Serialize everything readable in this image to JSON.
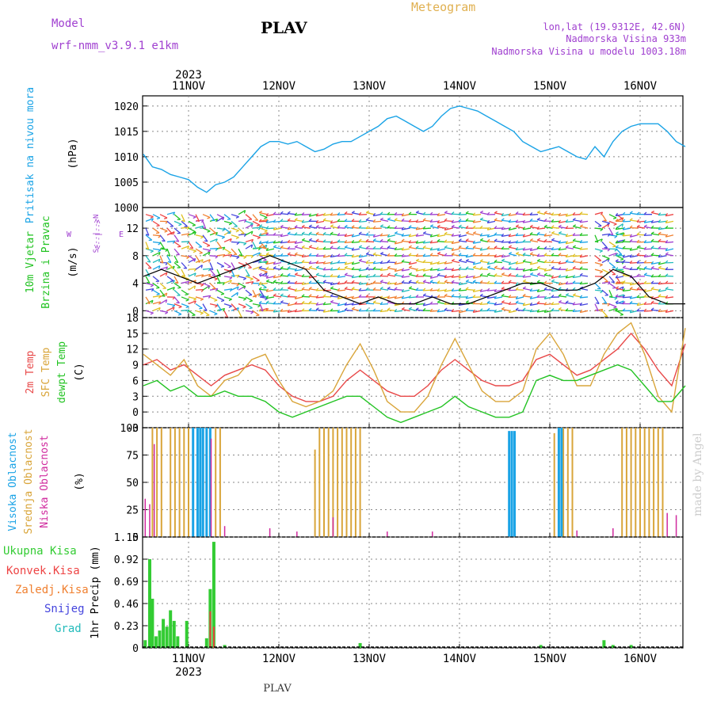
{
  "header": {
    "model_label": "Model",
    "model_name": "wrf-nmm_v3.9.1 e1km",
    "station": "PLAV",
    "title": "Meteogram",
    "lonlat": "lon,lat (19.9312E, 42.6N)",
    "altitude": "Nadmorska Visina 933m",
    "model_altitude": "Nadmorska Visina u modelu 1003.18m",
    "footer_station": "PLAV",
    "credit": "made by Angel"
  },
  "colors": {
    "pressure": "#1aa3e6",
    "wind_label": "#22c322",
    "temp2m": "#e84848",
    "sfc": "#d9a53a",
    "dewpt": "#22c322",
    "high_cloud": "#1aa3e6",
    "mid_cloud": "#d9a53a",
    "low_cloud": "#d02a9e",
    "total_precip": "#33cc33",
    "conv_precip": "#ee4444",
    "frz_precip": "#f08030",
    "snow": "#4444dd",
    "hail": "#22bbbb",
    "purple": "#a040d0",
    "title_gold": "#e0b050"
  },
  "chart_data": [
    {
      "type": "line",
      "name": "pressure",
      "ylabel": "Pritisak na nivou mora",
      "unit": "(hPa)",
      "ylim": [
        1000,
        1022
      ],
      "yticks": [
        1000,
        1005,
        1010,
        1015,
        1020
      ],
      "x_day_offset": [
        0.0,
        0.1,
        0.2,
        0.3,
        0.4,
        0.5,
        0.6,
        0.7,
        0.8,
        0.9,
        1.0,
        1.1,
        1.2,
        1.3,
        1.4,
        1.5,
        1.6,
        1.7,
        1.8,
        1.9,
        2.0,
        2.1,
        2.2,
        2.3,
        2.4,
        2.5,
        2.6,
        2.7,
        2.8,
        2.9,
        3.0,
        3.1,
        3.2,
        3.3,
        3.4,
        3.5,
        3.6,
        3.7,
        3.8,
        3.9,
        4.0,
        4.1,
        4.2,
        4.3,
        4.4,
        4.5,
        4.6,
        4.7,
        4.8,
        4.9,
        5.0,
        5.1,
        5.2,
        5.3,
        5.4,
        5.5,
        5.6,
        5.7,
        5.8,
        5.9,
        6.0
      ],
      "values": [
        1010.5,
        1008,
        1007.5,
        1006.5,
        1006,
        1005.5,
        1004,
        1003,
        1004.5,
        1005,
        1006,
        1008,
        1010,
        1012,
        1013,
        1013,
        1012.5,
        1013,
        1012,
        1011,
        1011.5,
        1012.5,
        1013,
        1013,
        1014,
        1015,
        1016,
        1017.5,
        1018,
        1017,
        1016,
        1015,
        1016,
        1018,
        1019.5,
        1020,
        1019.5,
        1019,
        1018,
        1017,
        1016,
        1015,
        1013,
        1012,
        1011,
        1011.5,
        1012,
        1011,
        1010,
        1009.5,
        1012,
        1010,
        1013,
        1015,
        1016,
        1016.5,
        1016.5,
        1016.5,
        1015,
        1013,
        1012
      ]
    },
    {
      "type": "barbs",
      "name": "wind",
      "ylabel": "10m Vjetar Brzina i Pravac",
      "unit": "(m/s)",
      "ylim": [
        -1,
        15
      ],
      "yticks": [
        0,
        4,
        8,
        12
      ],
      "compass": [
        "W",
        "<--|-->",
        "E",
        "S<--|-->N"
      ],
      "speed_x": [
        0.0,
        0.2,
        0.4,
        0.6,
        0.8,
        1.0,
        1.2,
        1.4,
        1.6,
        1.8,
        2.0,
        2.2,
        2.4,
        2.6,
        2.8,
        3.0,
        3.2,
        3.4,
        3.6,
        3.8,
        4.0,
        4.2,
        4.4,
        4.6,
        4.8,
        5.0,
        5.2,
        5.4,
        5.6,
        5.8,
        6.0
      ],
      "speed_values": [
        5,
        6,
        5,
        4,
        5,
        6,
        7,
        8,
        7,
        6,
        3,
        2,
        1,
        2,
        1,
        1,
        2,
        1,
        1,
        2,
        3,
        4,
        4,
        3,
        3,
        4,
        6,
        5,
        2,
        1,
        1
      ],
      "barb_colors": [
        "#22c322",
        "#e0c020",
        "#f08030",
        "#1aa3e6",
        "#a040d0",
        "#4444dd",
        "#22bbbb",
        "#ee4444"
      ]
    },
    {
      "type": "line",
      "name": "temperature",
      "ylabels": [
        "2m Temp",
        "SFC Temp",
        "dewpt Temp"
      ],
      "unit": "(C)",
      "ylim": [
        -3,
        18
      ],
      "yticks": [
        -3,
        0,
        3,
        6,
        9,
        12,
        15,
        18
      ],
      "x_day_offset": [
        0.0,
        0.15,
        0.3,
        0.45,
        0.6,
        0.75,
        0.9,
        1.05,
        1.2,
        1.35,
        1.5,
        1.65,
        1.8,
        1.95,
        2.1,
        2.25,
        2.4,
        2.55,
        2.7,
        2.85,
        3.0,
        3.15,
        3.3,
        3.45,
        3.6,
        3.75,
        3.9,
        4.05,
        4.2,
        4.35,
        4.5,
        4.65,
        4.8,
        4.95,
        5.1,
        5.25,
        5.4,
        5.55,
        5.7,
        5.85,
        6.0
      ],
      "series": [
        {
          "name": "2m Temp",
          "values": [
            9,
            10,
            8,
            9,
            7,
            5,
            7,
            8,
            9,
            8,
            5,
            3,
            2,
            2,
            3,
            6,
            8,
            6,
            4,
            3,
            3,
            5,
            8,
            10,
            8,
            6,
            5,
            5,
            6,
            10,
            11,
            9,
            7,
            8,
            10,
            12,
            15,
            12,
            8,
            5,
            13
          ]
        },
        {
          "name": "SFC Temp",
          "values": [
            11,
            9,
            7,
            10,
            5,
            3,
            6,
            7,
            10,
            11,
            6,
            2,
            1,
            2,
            4,
            9,
            13,
            8,
            2,
            0,
            0,
            3,
            9,
            14,
            9,
            4,
            2,
            2,
            4,
            12,
            15,
            11,
            5,
            5,
            11,
            15,
            17,
            11,
            3,
            0,
            16
          ]
        },
        {
          "name": "dewpt Temp",
          "values": [
            5,
            6,
            4,
            5,
            3,
            3,
            4,
            3,
            3,
            2,
            0,
            -1,
            0,
            1,
            2,
            3,
            3,
            1,
            -1,
            -2,
            -1,
            0,
            1,
            3,
            1,
            0,
            -1,
            -1,
            0,
            6,
            7,
            6,
            6,
            7,
            8,
            9,
            8,
            5,
            2,
            2,
            5
          ]
        }
      ]
    },
    {
      "type": "bar",
      "name": "clouds",
      "ylabels": [
        "Visoka Oblacnost",
        "Srednja Oblacnost",
        "Niska Oblacnost"
      ],
      "unit": "(%)",
      "ylim": [
        0,
        100
      ],
      "yticks": [
        0,
        25,
        50,
        75,
        100
      ],
      "high": {
        "x": [
          0.55,
          0.6,
          0.63,
          0.66,
          0.7,
          0.74,
          4.05,
          4.08,
          4.11,
          4.6,
          4.63
        ],
        "values": [
          100,
          100,
          100,
          100,
          100,
          100,
          97,
          97,
          97,
          100,
          100
        ]
      },
      "mid": {
        "x": [
          0.1,
          0.15,
          0.2,
          0.3,
          0.35,
          0.4,
          0.45,
          0.5,
          0.8,
          0.85,
          1.9,
          1.95,
          2.0,
          2.05,
          2.1,
          2.15,
          2.2,
          2.25,
          2.3,
          2.35,
          2.4,
          4.55,
          4.6,
          4.65,
          4.7,
          4.75,
          5.3,
          5.35,
          5.4,
          5.45,
          5.5,
          5.55,
          5.6,
          5.65,
          5.7,
          5.75
        ],
        "values": [
          100,
          100,
          100,
          100,
          100,
          100,
          100,
          100,
          100,
          100,
          80,
          100,
          100,
          100,
          100,
          100,
          100,
          100,
          100,
          100,
          100,
          95,
          100,
          100,
          100,
          100,
          100,
          100,
          100,
          100,
          100,
          100,
          100,
          100,
          100,
          100
        ]
      },
      "low": {
        "x": [
          0.02,
          0.07,
          0.12,
          0.75,
          0.9,
          1.4,
          1.7,
          2.1,
          2.7,
          3.2,
          4.8,
          5.2,
          5.8,
          5.9
        ],
        "values": [
          35,
          30,
          85,
          90,
          10,
          8,
          5,
          18,
          5,
          5,
          6,
          8,
          22,
          20
        ]
      }
    },
    {
      "type": "bar",
      "name": "precipitation",
      "ylabels": [
        "Ukupna Kisa",
        "Konvek.Kisa",
        "Zaledj.Kisa",
        "Snijeg",
        "Grad"
      ],
      "unit": "1hr Precip (mm)",
      "ylim": [
        0,
        1.15
      ],
      "yticks": [
        0,
        0.23,
        0.46,
        0.69,
        0.92,
        1.15
      ],
      "total": {
        "x": [
          0.02,
          0.07,
          0.1,
          0.14,
          0.18,
          0.22,
          0.26,
          0.3,
          0.34,
          0.38,
          0.48,
          0.7,
          0.74,
          0.78,
          0.9,
          2.4,
          4.4,
          5.1,
          5.2,
          5.4
        ],
        "values": [
          0.08,
          0.92,
          0.51,
          0.12,
          0.18,
          0.3,
          0.22,
          0.39,
          0.28,
          0.12,
          0.28,
          0.1,
          0.61,
          1.1,
          0.03,
          0.05,
          0.03,
          0.08,
          0.03,
          0.03
        ]
      },
      "conv": {
        "x": [
          0.74,
          0.78
        ],
        "values": [
          0.38,
          0.22
        ]
      }
    }
  ],
  "time_axis": {
    "year": "2023",
    "start_day_label_x": 11,
    "days": [
      "11NOV",
      "12NOV",
      "13NOV",
      "14NOV",
      "15NOV",
      "16NOV"
    ]
  }
}
